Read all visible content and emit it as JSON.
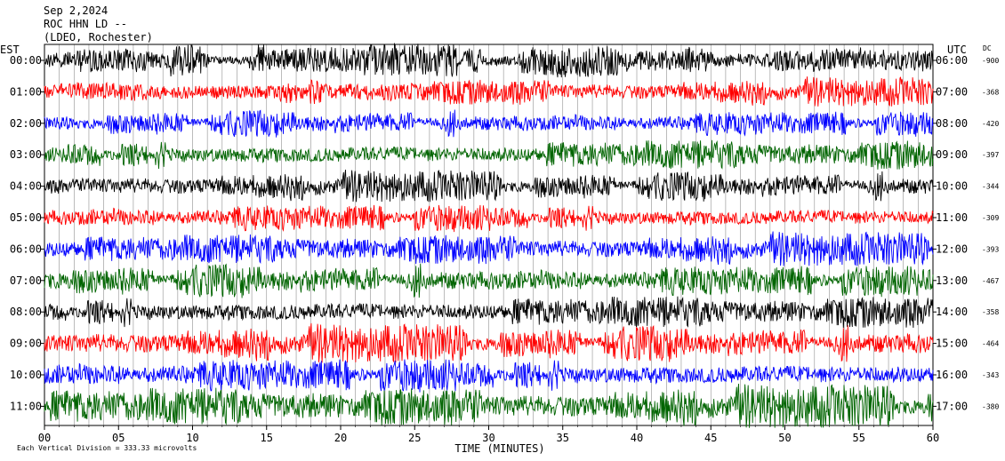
{
  "header": {
    "date": "Sep 2,2024",
    "station": "ROC HHN LD --",
    "network": "(LDEO, Rochester)"
  },
  "chart_data": {
    "type": "line",
    "title": "Sep 2,2024 ROC HHN LD -- (LDEO, Rochester)",
    "xlabel": "TIME (MINUTES)",
    "x_ticks": [
      "00",
      "05",
      "10",
      "15",
      "20",
      "25",
      "30",
      "35",
      "40",
      "45",
      "50",
      "55",
      "60"
    ],
    "xlim": [
      0,
      60
    ],
    "left_axis_label": "EST",
    "right_axis_label": "UTC",
    "dc_label": "DC",
    "scale_note": "Each Vertical Division = 333.33 microvolts",
    "grid": true,
    "colors": [
      "#000000",
      "#ff0000",
      "#0000ff",
      "#006400"
    ],
    "rows": [
      {
        "est": "00:00",
        "utc": "06:00",
        "dc": "-900",
        "color": "#000000",
        "amp": 14
      },
      {
        "est": "01:00",
        "utc": "07:00",
        "dc": "-368",
        "color": "#ff0000",
        "amp": 12
      },
      {
        "est": "02:00",
        "utc": "08:00",
        "dc": "-420",
        "color": "#0000ff",
        "amp": 12
      },
      {
        "est": "03:00",
        "utc": "09:00",
        "dc": "-397",
        "color": "#006400",
        "amp": 14
      },
      {
        "est": "04:00",
        "utc": "10:00",
        "dc": "-344",
        "color": "#000000",
        "amp": 13
      },
      {
        "est": "05:00",
        "utc": "11:00",
        "dc": "-309",
        "color": "#ff0000",
        "amp": 13
      },
      {
        "est": "06:00",
        "utc": "12:00",
        "dc": "-393",
        "color": "#0000ff",
        "amp": 14
      },
      {
        "est": "07:00",
        "utc": "13:00",
        "dc": "-467",
        "color": "#006400",
        "amp": 15
      },
      {
        "est": "08:00",
        "utc": "14:00",
        "dc": "-358",
        "color": "#000000",
        "amp": 15
      },
      {
        "est": "09:00",
        "utc": "15:00",
        "dc": "-464",
        "color": "#ff0000",
        "amp": 16
      },
      {
        "est": "10:00",
        "utc": "16:00",
        "dc": "-343",
        "color": "#0000ff",
        "amp": 16
      },
      {
        "est": "11:00",
        "utc": "17:00",
        "dc": "-380",
        "color": "#006400",
        "amp": 18
      }
    ]
  }
}
